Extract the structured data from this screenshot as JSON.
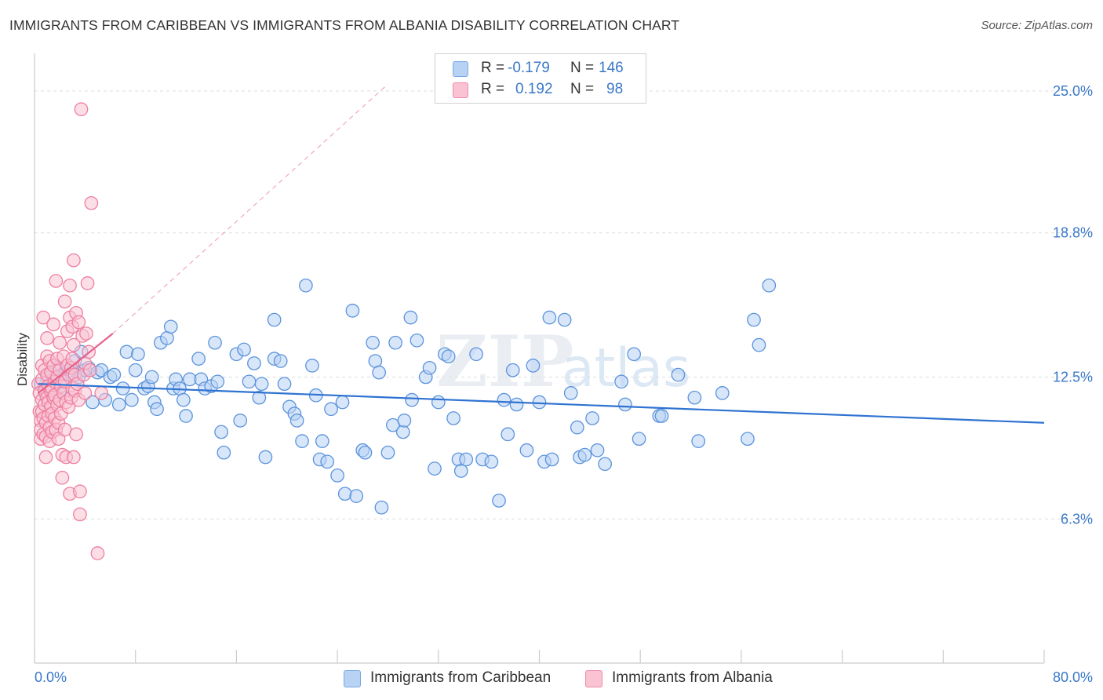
{
  "title": "IMMIGRANTS FROM CARIBBEAN VS IMMIGRANTS FROM ALBANIA DISABILITY CORRELATION CHART",
  "source": "Source: ZipAtlas.com",
  "watermark": {
    "zip": "ZIP",
    "atlas": "atlas"
  },
  "legend": {
    "r_label": "R =",
    "n_label": "N =",
    "caribbean": {
      "r": "-0.179",
      "n": "146"
    },
    "albania": {
      "r": "0.192",
      "n": "98"
    }
  },
  "colors": {
    "blue_fill": "#b8d2f4",
    "blue_stroke": "#5b93dc",
    "blue_line": "#2f73d1",
    "pink_fill": "#f9c3d3",
    "pink_stroke": "#ee7fa0",
    "pink_line": "#e8608a",
    "tick_text": "#3a78c9",
    "grid": "#dddddd"
  },
  "chart_data": {
    "type": "scatter",
    "title": "IMMIGRANTS FROM CARIBBEAN VS IMMIGRANTS FROM ALBANIA DISABILITY CORRELATION CHART",
    "xlabel": "",
    "ylabel": "Disability",
    "xlim": [
      0,
      80
    ],
    "ylim": [
      0,
      26.3
    ],
    "x_tick_labels": [
      "0.0%",
      "80.0%"
    ],
    "y_ticks": [
      6.3,
      12.5,
      18.8,
      25.0
    ],
    "y_tick_labels": [
      "6.3%",
      "12.5%",
      "18.8%",
      "25.0%"
    ],
    "grid": true,
    "legend_position": "top-center",
    "series": [
      {
        "name": "Immigrants from Caribbean",
        "color": "#5b93dc",
        "r": -0.179,
        "n": 146,
        "trend": {
          "x0": 0.3,
          "y0": 12.2,
          "x1": 80.0,
          "y1": 10.5
        },
        "points": [
          [
            0.5,
            12.2
          ],
          [
            0.8,
            11.8
          ],
          [
            1.0,
            12.4
          ],
          [
            1.2,
            12.0
          ],
          [
            1.4,
            12.6
          ],
          [
            1.6,
            12.1
          ],
          [
            1.8,
            12.9
          ],
          [
            2.0,
            11.9
          ],
          [
            2.2,
            12.3
          ],
          [
            2.5,
            12.7
          ],
          [
            2.8,
            12.8
          ],
          [
            3.0,
            12.6
          ],
          [
            3.2,
            13.2
          ],
          [
            3.5,
            12.5
          ],
          [
            3.7,
            13.6
          ],
          [
            4.0,
            12.8
          ],
          [
            4.3,
            12.9
          ],
          [
            4.6,
            11.4
          ],
          [
            5.0,
            12.7
          ],
          [
            5.3,
            12.8
          ],
          [
            5.6,
            11.5
          ],
          [
            6.0,
            12.5
          ],
          [
            6.3,
            12.6
          ],
          [
            6.7,
            11.3
          ],
          [
            7.0,
            12.0
          ],
          [
            7.3,
            13.6
          ],
          [
            7.7,
            11.5
          ],
          [
            8.0,
            12.8
          ],
          [
            8.2,
            13.5
          ],
          [
            8.7,
            12.0
          ],
          [
            9.0,
            12.1
          ],
          [
            9.3,
            12.5
          ],
          [
            9.5,
            11.4
          ],
          [
            9.7,
            11.1
          ],
          [
            10.0,
            14.0
          ],
          [
            10.5,
            14.2
          ],
          [
            10.8,
            14.7
          ],
          [
            11.0,
            12.0
          ],
          [
            11.2,
            12.4
          ],
          [
            11.5,
            12.0
          ],
          [
            11.8,
            11.5
          ],
          [
            12.0,
            10.8
          ],
          [
            12.3,
            12.4
          ],
          [
            13.0,
            13.3
          ],
          [
            13.2,
            12.4
          ],
          [
            13.5,
            12.0
          ],
          [
            14.0,
            12.1
          ],
          [
            14.3,
            14.0
          ],
          [
            14.5,
            12.3
          ],
          [
            14.8,
            10.1
          ],
          [
            15.0,
            9.2
          ],
          [
            16.0,
            13.5
          ],
          [
            16.3,
            10.6
          ],
          [
            16.6,
            13.7
          ],
          [
            17.0,
            12.3
          ],
          [
            17.4,
            13.1
          ],
          [
            17.8,
            11.6
          ],
          [
            18.0,
            12.2
          ],
          [
            18.3,
            9.0
          ],
          [
            19.0,
            15.0
          ],
          [
            19.0,
            13.3
          ],
          [
            19.5,
            13.2
          ],
          [
            19.8,
            12.2
          ],
          [
            20.2,
            11.2
          ],
          [
            20.6,
            10.9
          ],
          [
            20.8,
            10.6
          ],
          [
            21.2,
            9.7
          ],
          [
            21.5,
            16.5
          ],
          [
            22.0,
            13.0
          ],
          [
            22.3,
            11.7
          ],
          [
            22.6,
            8.9
          ],
          [
            22.8,
            9.7
          ],
          [
            23.2,
            8.8
          ],
          [
            23.5,
            11.1
          ],
          [
            24.0,
            8.2
          ],
          [
            24.4,
            11.4
          ],
          [
            24.6,
            7.4
          ],
          [
            25.2,
            15.4
          ],
          [
            25.5,
            7.3
          ],
          [
            26.0,
            9.3
          ],
          [
            26.2,
            9.2
          ],
          [
            26.8,
            14.0
          ],
          [
            27.0,
            13.2
          ],
          [
            27.3,
            12.7
          ],
          [
            27.5,
            6.8
          ],
          [
            28.0,
            9.2
          ],
          [
            28.4,
            10.4
          ],
          [
            28.6,
            14.0
          ],
          [
            29.2,
            10.1
          ],
          [
            29.3,
            10.6
          ],
          [
            29.8,
            15.1
          ],
          [
            29.9,
            11.5
          ],
          [
            30.3,
            14.1
          ],
          [
            31.0,
            12.5
          ],
          [
            31.3,
            12.9
          ],
          [
            31.7,
            8.5
          ],
          [
            32.0,
            11.4
          ],
          [
            32.5,
            13.5
          ],
          [
            32.8,
            13.4
          ],
          [
            33.2,
            10.7
          ],
          [
            33.6,
            8.9
          ],
          [
            33.8,
            8.4
          ],
          [
            34.2,
            8.9
          ],
          [
            35.0,
            13.5
          ],
          [
            35.5,
            8.9
          ],
          [
            36.2,
            8.8
          ],
          [
            36.8,
            7.1
          ],
          [
            37.2,
            11.5
          ],
          [
            37.5,
            10.0
          ],
          [
            37.9,
            12.8
          ],
          [
            38.2,
            11.3
          ],
          [
            39.0,
            9.3
          ],
          [
            39.5,
            13.0
          ],
          [
            40.0,
            11.4
          ],
          [
            40.4,
            8.8
          ],
          [
            40.8,
            15.1
          ],
          [
            41.0,
            8.9
          ],
          [
            42.0,
            15.0
          ],
          [
            42.5,
            11.8
          ],
          [
            43.0,
            10.3
          ],
          [
            43.2,
            9.0
          ],
          [
            43.6,
            9.1
          ],
          [
            44.2,
            10.7
          ],
          [
            44.6,
            9.3
          ],
          [
            45.2,
            8.7
          ],
          [
            46.5,
            12.3
          ],
          [
            46.8,
            11.3
          ],
          [
            47.5,
            13.5
          ],
          [
            47.9,
            9.8
          ],
          [
            49.5,
            10.8
          ],
          [
            49.7,
            10.8
          ],
          [
            51.0,
            12.6
          ],
          [
            52.3,
            11.6
          ],
          [
            52.6,
            9.7
          ],
          [
            54.5,
            11.8
          ],
          [
            56.5,
            9.8
          ],
          [
            57.0,
            15.0
          ],
          [
            57.4,
            13.9
          ],
          [
            58.2,
            16.5
          ]
        ]
      },
      {
        "name": "Immigrants from Albania",
        "color": "#ee7fa0",
        "r": 0.192,
        "n": 98,
        "trend": {
          "x0": 0.3,
          "y0": 11.8,
          "x1": 6.2,
          "y1": 14.4,
          "dashed_to": {
            "x": 28.0,
            "y": 25.3
          }
        },
        "points": [
          [
            0.3,
            12.2
          ],
          [
            0.4,
            11.8
          ],
          [
            0.4,
            11.0
          ],
          [
            0.5,
            10.6
          ],
          [
            0.5,
            10.2
          ],
          [
            0.5,
            9.8
          ],
          [
            0.6,
            13.0
          ],
          [
            0.6,
            12.4
          ],
          [
            0.6,
            11.5
          ],
          [
            0.6,
            11.0
          ],
          [
            0.7,
            10.7
          ],
          [
            0.7,
            10.0
          ],
          [
            0.7,
            15.1
          ],
          [
            0.8,
            12.8
          ],
          [
            0.8,
            11.9
          ],
          [
            0.8,
            11.3
          ],
          [
            0.9,
            10.5
          ],
          [
            0.9,
            9.9
          ],
          [
            0.9,
            9.0
          ],
          [
            1.0,
            14.2
          ],
          [
            1.0,
            13.4
          ],
          [
            1.0,
            12.6
          ],
          [
            1.0,
            11.6
          ],
          [
            1.1,
            12.1
          ],
          [
            1.1,
            11.4
          ],
          [
            1.1,
            10.8
          ],
          [
            1.2,
            10.3
          ],
          [
            1.2,
            9.7
          ],
          [
            1.2,
            13.2
          ],
          [
            1.3,
            12.7
          ],
          [
            1.3,
            11.9
          ],
          [
            1.3,
            11.2
          ],
          [
            1.4,
            10.9
          ],
          [
            1.4,
            10.1
          ],
          [
            1.4,
            12.0
          ],
          [
            1.5,
            14.8
          ],
          [
            1.5,
            13.0
          ],
          [
            1.5,
            11.6
          ],
          [
            1.6,
            12.3
          ],
          [
            1.6,
            11.7
          ],
          [
            1.6,
            10.7
          ],
          [
            1.7,
            10.2
          ],
          [
            1.7,
            16.7
          ],
          [
            1.8,
            13.3
          ],
          [
            1.8,
            12.5
          ],
          [
            1.8,
            11.3
          ],
          [
            1.9,
            10.5
          ],
          [
            1.9,
            9.8
          ],
          [
            2.0,
            14.0
          ],
          [
            2.0,
            12.8
          ],
          [
            2.0,
            11.5
          ],
          [
            2.1,
            12.1
          ],
          [
            2.1,
            10.9
          ],
          [
            2.2,
            9.1
          ],
          [
            2.2,
            8.1
          ],
          [
            2.3,
            13.4
          ],
          [
            2.3,
            11.8
          ],
          [
            2.4,
            15.8
          ],
          [
            2.4,
            12.3
          ],
          [
            2.4,
            10.2
          ],
          [
            2.5,
            11.4
          ],
          [
            2.5,
            9.0
          ],
          [
            2.6,
            14.5
          ],
          [
            2.6,
            13.0
          ],
          [
            2.7,
            12.6
          ],
          [
            2.7,
            11.2
          ],
          [
            2.8,
            16.5
          ],
          [
            2.8,
            15.1
          ],
          [
            2.8,
            7.4
          ],
          [
            2.9,
            12.9
          ],
          [
            2.9,
            11.6
          ],
          [
            3.0,
            14.7
          ],
          [
            3.0,
            13.3
          ],
          [
            3.0,
            12.0
          ],
          [
            3.1,
            17.6
          ],
          [
            3.1,
            13.9
          ],
          [
            3.1,
            9.0
          ],
          [
            3.2,
            12.6
          ],
          [
            3.2,
            11.9
          ],
          [
            3.3,
            15.3
          ],
          [
            3.3,
            10.0
          ],
          [
            3.4,
            12.2
          ],
          [
            3.5,
            14.9
          ],
          [
            3.5,
            11.5
          ],
          [
            3.6,
            7.5
          ],
          [
            3.6,
            6.5
          ],
          [
            3.7,
            24.2
          ],
          [
            3.8,
            14.3
          ],
          [
            3.9,
            12.6
          ],
          [
            4.0,
            13.1
          ],
          [
            4.0,
            11.8
          ],
          [
            4.1,
            14.4
          ],
          [
            4.2,
            16.6
          ],
          [
            4.3,
            13.6
          ],
          [
            4.4,
            12.8
          ],
          [
            4.5,
            20.1
          ],
          [
            5.0,
            4.8
          ],
          [
            5.3,
            11.8
          ]
        ]
      }
    ]
  }
}
